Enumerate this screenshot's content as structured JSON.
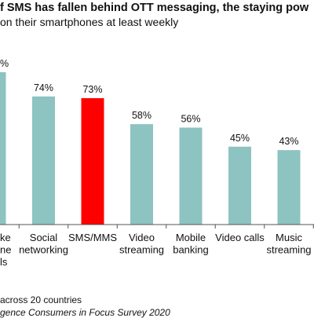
{
  "header": {
    "title": "f SMS has fallen behind OTT messaging, the staying pow",
    "subtitle": "on their smartphones at least weekly"
  },
  "footnotes": {
    "line1": "across 20 countries",
    "line2": "gence Consumers in Focus Survey 2020"
  },
  "colors": {
    "bar": "#8dc3c1",
    "highlight": "#ff0000"
  },
  "chart_data": {
    "type": "bar",
    "title": "",
    "xlabel": "",
    "ylabel": "",
    "ylim": [
      0,
      100
    ],
    "grid": false,
    "categories": [
      [
        "ke",
        "ne",
        "ls"
      ],
      [
        "Social",
        "networking"
      ],
      [
        "SMS/MMS"
      ],
      [
        "Video",
        "streaming"
      ],
      [
        "Mobile",
        "banking"
      ],
      [
        "Video calls"
      ],
      [
        "Music",
        "streaming"
      ]
    ],
    "values": [
      88,
      74,
      73,
      58,
      56,
      45,
      43
    ],
    "value_labels": [
      "%",
      "74%",
      "73%",
      "58%",
      "56%",
      "45%",
      "43%"
    ],
    "highlight": [
      false,
      false,
      true,
      false,
      false,
      false,
      false
    ]
  }
}
